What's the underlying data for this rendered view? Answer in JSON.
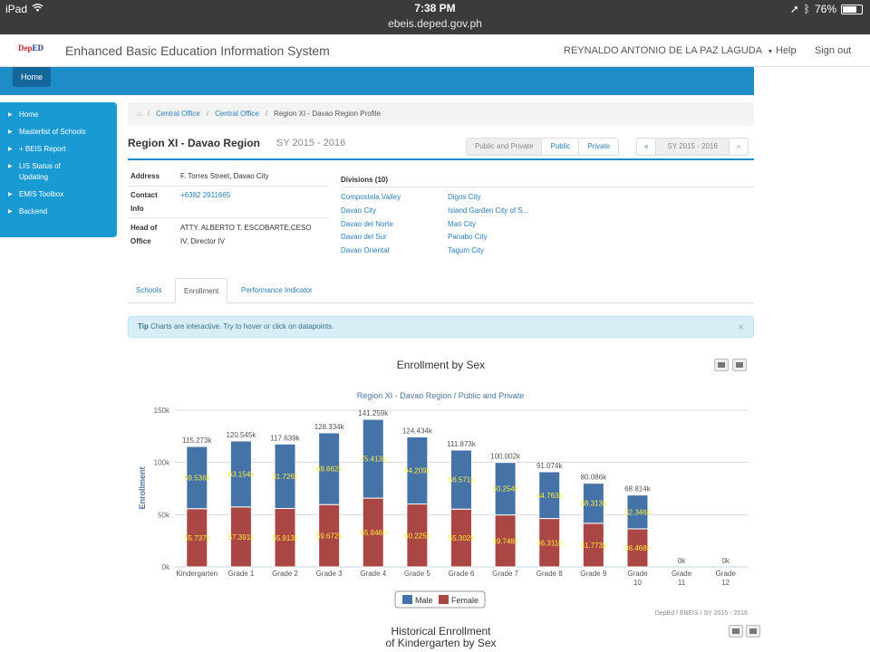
{
  "status_bar": {
    "device": "iPad",
    "time": "7:38 PM",
    "url": "ebeis.deped.gov.ph",
    "battery": "76%",
    "battery_level": 0.76
  },
  "navbar": {
    "logo_dep": "Dep",
    "logo_ed": "ED",
    "title": "Enhanced Basic Education Information System",
    "user": "REYNALDO ANTONIO DE LA PAZ LAGUDA",
    "help": "Help",
    "signout": "Sign out"
  },
  "header": {
    "home_tab": "Home"
  },
  "sidebar": {
    "items": [
      {
        "label": "Home"
      },
      {
        "label": "Masterlist of Schools"
      },
      {
        "label": "+ BEIS Report"
      },
      {
        "label": "LIS Status of Updating"
      },
      {
        "label": "EMIS Toolbox"
      },
      {
        "label": "Backend"
      }
    ]
  },
  "breadcrumb": {
    "home_icon": "⌂",
    "items": [
      "Central Office",
      "Central Office",
      "Region XI - Davao Region Profile"
    ]
  },
  "region": {
    "title": "Region XI - Davao Region",
    "sy": "SY 2015 - 2016",
    "filters": [
      "Public and Private",
      "Public",
      "Private"
    ],
    "sy_prev": "«",
    "sy_current": "SY 2015 - 2016",
    "sy_next": "»"
  },
  "info": {
    "address_label": "Address",
    "address": "F. Torres Street, Davao City",
    "contact_label1": "Contact",
    "contact_label2": "Info",
    "contact": "+6382 2911665",
    "head_label1": "Head of",
    "head_label2": "Office",
    "head1": "ATTY. ALBERTO T. ESCOBARTE,CESO",
    "head2": "IV, Director IV"
  },
  "divisions": {
    "heading": "Divisions (10)",
    "col1": [
      "Compostela Valley",
      "Davao City",
      "Davao del Norte",
      "Davao del Sur",
      "Davao Oriental"
    ],
    "col2": [
      "Digos City",
      "Island Garden City of S...",
      "Mati City",
      "Panabo City",
      "Tagum City"
    ]
  },
  "tabs": [
    "Schools",
    "Enrollment",
    "Performance Indicator"
  ],
  "tip": {
    "bold": "Tip",
    "text": "Charts are interactive. Try to hover or click on datapoints.",
    "close": "×"
  },
  "chart_title": "Enrollment by Sex",
  "chart_data": {
    "type": "bar",
    "stacked": true,
    "title": "Enrollment by Sex",
    "subtitle": "Region XI - Davao Region / Public and Private",
    "ylabel": "Enrollment",
    "ylim": [
      0,
      150000
    ],
    "yticks": [
      "0k",
      "50k",
      "100k",
      "150k"
    ],
    "categories": [
      [
        "Kindergarten"
      ],
      [
        "Grade 1"
      ],
      [
        "Grade 2"
      ],
      [
        "Grade 3"
      ],
      [
        "Grade 4"
      ],
      [
        "Grade 5"
      ],
      [
        "Grade 6"
      ],
      [
        "Grade 7"
      ],
      [
        "Grade 8"
      ],
      [
        "Grade 9"
      ],
      [
        "Grade",
        "10"
      ],
      [
        "Grade",
        "11"
      ],
      [
        "Grade",
        "12"
      ]
    ],
    "series": [
      {
        "name": "Male",
        "color": "#4572a7",
        "values": [
          59536,
          63154,
          61726,
          68662,
          75413,
          64209,
          56571,
          50254,
          44763,
          38313,
          32346,
          0,
          0
        ],
        "labels": [
          "59.536k",
          "63.154k",
          "61.726k",
          "68.662k",
          "75.413k",
          "64.209k",
          "56.571k",
          "50.254k",
          "44.763k",
          "38.313k",
          "32.346k",
          "",
          ""
        ]
      },
      {
        "name": "Female",
        "color": "#aa4643",
        "values": [
          55737,
          57391,
          55913,
          59672,
          65846,
          60225,
          55302,
          49748,
          46311,
          41773,
          36468,
          0,
          0
        ],
        "labels": [
          "55.737k",
          "57.391k",
          "55.913k",
          "59.672k",
          "65.846k",
          "60.225k",
          "55.302k",
          "49.748k",
          "46.311k",
          "41.773k",
          "36.468k",
          "",
          ""
        ]
      }
    ],
    "totals": [
      "115.273k",
      "120.545k",
      "117.639k",
      "128.334k",
      "141.259k",
      "124.434k",
      "111.873k",
      "100.002k",
      "91.074k",
      "80.086k",
      "68.814k",
      "0k",
      "0k"
    ],
    "legend": [
      "Male",
      "Female"
    ],
    "legend_position": "bottom-center",
    "credits": "DepEd / EBEIS / SY 2015 - 2016"
  },
  "hist_title1": "Historical Enrollment",
  "hist_title2": "of Kindergarten by Sex"
}
